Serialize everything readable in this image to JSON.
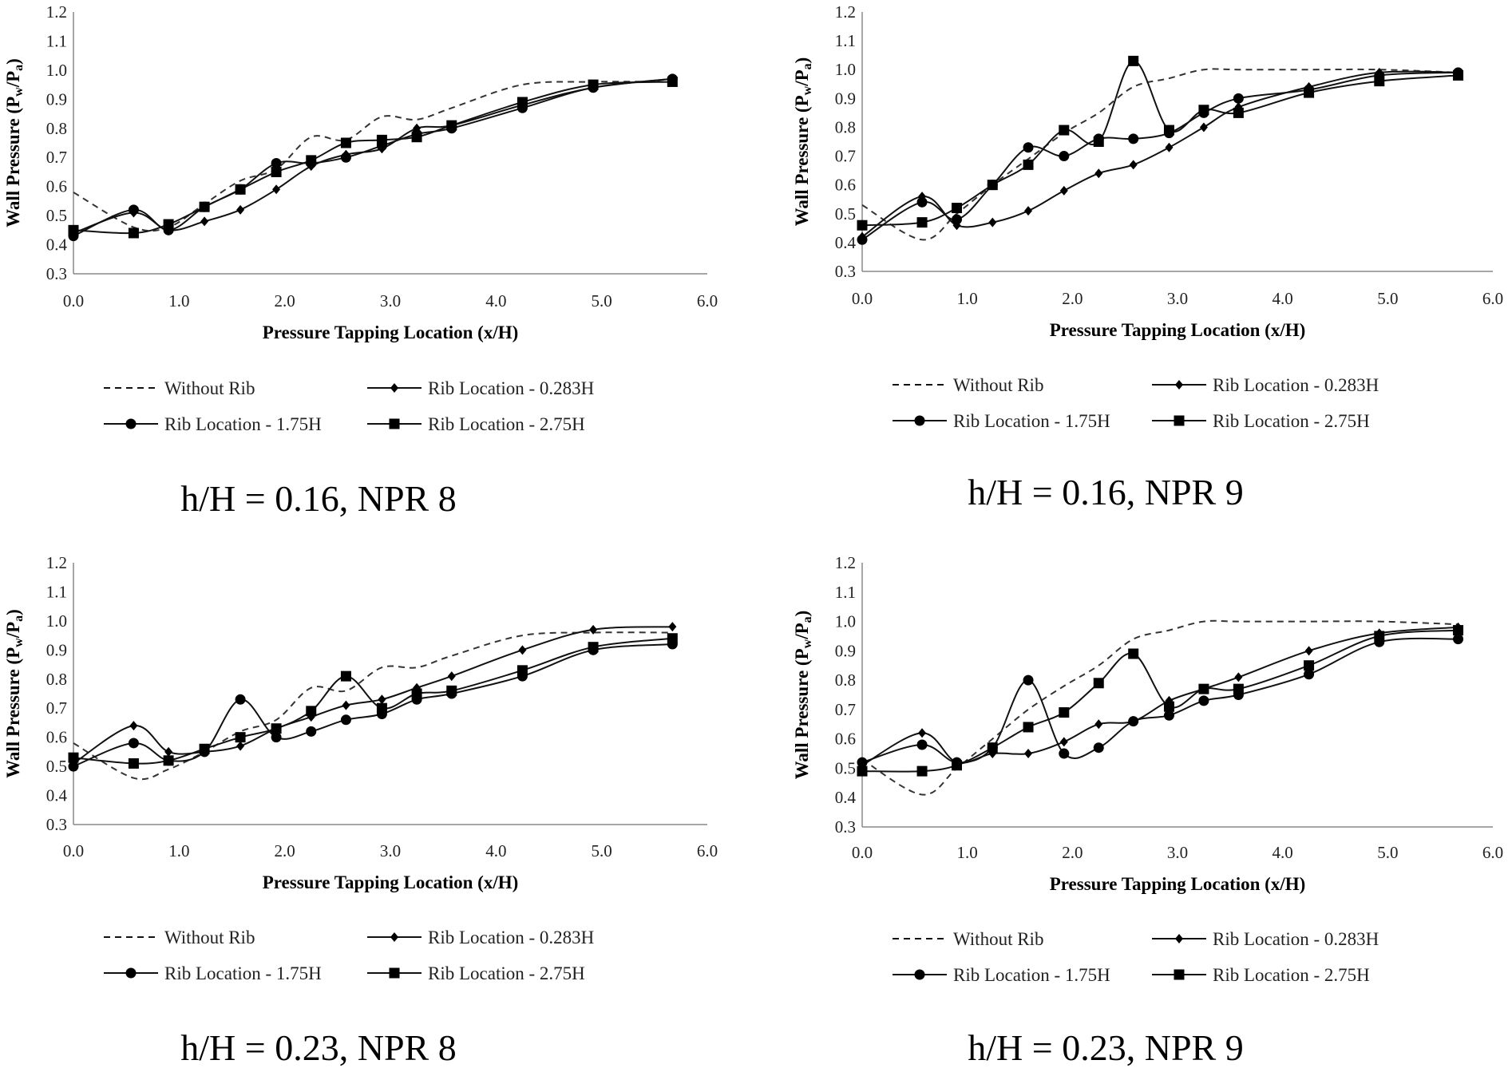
{
  "chart_data": [
    {
      "type": "line",
      "title": "h/H = 0.16, NPR 8",
      "xlabel": "Pressure Tapping Location (x/H)",
      "ylabel": "Wall Pressure (Pw/Pa)",
      "ylabel_parts": {
        "main": "Wall Pressure (P",
        "sub1": "w",
        "mid": "/P",
        "sub2": "a",
        "end": ")"
      },
      "xlim": [
        0,
        6
      ],
      "ylim": [
        0.3,
        1.2
      ],
      "xticks": [
        "0.0",
        "1.0",
        "2.0",
        "3.0",
        "4.0",
        "5.0",
        "6.0"
      ],
      "yticks": [
        "0.3",
        "0.4",
        "0.5",
        "0.6",
        "0.7",
        "0.8",
        "0.9",
        "1.0",
        "1.1",
        "1.2"
      ],
      "grid": false,
      "legend_position": "bottom",
      "series": [
        {
          "name": "Without Rib",
          "marker": "none",
          "dash": true,
          "x": [
            0,
            0.57,
            0.9,
            1.24,
            1.58,
            1.92,
            2.25,
            2.58,
            2.92,
            3.25,
            3.58,
            4.25,
            4.92,
            5.67
          ],
          "y": [
            0.58,
            0.46,
            0.46,
            0.54,
            0.62,
            0.66,
            0.77,
            0.76,
            0.84,
            0.83,
            0.87,
            0.95,
            0.96,
            0.96
          ]
        },
        {
          "name": "Rib Location - 0.283H",
          "marker": "diamond",
          "x": [
            0,
            0.57,
            0.9,
            1.24,
            1.58,
            1.92,
            2.25,
            2.58,
            2.92,
            3.25,
            3.58,
            4.25,
            4.92,
            5.67
          ],
          "y": [
            0.44,
            0.51,
            0.45,
            0.48,
            0.52,
            0.59,
            0.67,
            0.71,
            0.73,
            0.8,
            0.81,
            0.88,
            0.94,
            0.97
          ]
        },
        {
          "name": "Rib Location - 1.75H",
          "marker": "circle",
          "x": [
            0,
            0.57,
            0.9,
            1.24,
            1.58,
            1.92,
            2.25,
            2.58,
            2.92,
            3.25,
            3.58,
            4.25,
            4.92,
            5.67
          ],
          "y": [
            0.43,
            0.52,
            0.45,
            0.53,
            0.59,
            0.68,
            0.68,
            0.7,
            0.74,
            0.78,
            0.8,
            0.87,
            0.94,
            0.97
          ]
        },
        {
          "name": "Rib Location - 2.75H",
          "marker": "square",
          "x": [
            0,
            0.57,
            0.9,
            1.24,
            1.58,
            1.92,
            2.25,
            2.58,
            2.92,
            3.25,
            3.58,
            4.25,
            4.92,
            5.67
          ],
          "y": [
            0.45,
            0.44,
            0.47,
            0.53,
            0.59,
            0.65,
            0.69,
            0.75,
            0.76,
            0.77,
            0.81,
            0.89,
            0.95,
            0.96
          ]
        }
      ]
    },
    {
      "type": "line",
      "title": "h/H = 0.16, NPR 9",
      "xlabel": "Pressure Tapping Location (x/H)",
      "ylabel": "Wall Pressure (Pw/Pa)",
      "ylabel_parts": {
        "main": "Wall Pressure (P",
        "sub1": "w",
        "mid": "/P",
        "sub2": "a",
        "end": ")"
      },
      "xlim": [
        0,
        6
      ],
      "ylim": [
        0.3,
        1.2
      ],
      "xticks": [
        "0.0",
        "1.0",
        "2.0",
        "3.0",
        "4.0",
        "5.0",
        "6.0"
      ],
      "yticks": [
        "0.3",
        "0.4",
        "0.5",
        "0.6",
        "0.7",
        "0.8",
        "0.9",
        "1.0",
        "1.1",
        "1.2"
      ],
      "grid": false,
      "legend_position": "bottom",
      "series": [
        {
          "name": "Without Rib",
          "marker": "none",
          "dash": true,
          "x": [
            0,
            0.57,
            0.9,
            1.24,
            1.58,
            1.92,
            2.25,
            2.58,
            2.92,
            3.25,
            3.58,
            4.25,
            4.92,
            5.67
          ],
          "y": [
            0.53,
            0.41,
            0.5,
            0.6,
            0.69,
            0.78,
            0.85,
            0.94,
            0.97,
            1.0,
            1.0,
            1.0,
            1.0,
            0.99
          ]
        },
        {
          "name": "Rib Location - 0.283H",
          "marker": "diamond",
          "x": [
            0,
            0.57,
            0.9,
            1.24,
            1.58,
            1.92,
            2.25,
            2.58,
            2.92,
            3.25,
            3.58,
            4.25,
            4.92,
            5.67
          ],
          "y": [
            0.42,
            0.56,
            0.46,
            0.47,
            0.51,
            0.58,
            0.64,
            0.67,
            0.73,
            0.8,
            0.87,
            0.94,
            0.99,
            0.99
          ]
        },
        {
          "name": "Rib Location - 1.75H",
          "marker": "circle",
          "x": [
            0,
            0.57,
            0.9,
            1.24,
            1.58,
            1.92,
            2.25,
            2.58,
            2.92,
            3.25,
            3.58,
            4.25,
            4.92,
            5.67
          ],
          "y": [
            0.41,
            0.54,
            0.48,
            0.6,
            0.73,
            0.7,
            0.76,
            0.76,
            0.78,
            0.85,
            0.9,
            0.93,
            0.98,
            0.99
          ]
        },
        {
          "name": "Rib Location - 2.75H",
          "marker": "square",
          "x": [
            0,
            0.57,
            0.9,
            1.24,
            1.58,
            1.92,
            2.25,
            2.58,
            2.92,
            3.25,
            3.58,
            4.25,
            4.92,
            5.67
          ],
          "y": [
            0.46,
            0.47,
            0.52,
            0.6,
            0.67,
            0.79,
            0.75,
            1.03,
            0.79,
            0.86,
            0.85,
            0.92,
            0.96,
            0.98
          ]
        }
      ]
    },
    {
      "type": "line",
      "title": "h/H = 0.23, NPR 8",
      "xlabel": "Pressure Tapping Location (x/H)",
      "ylabel": "Wall Pressure (Pw/Pa)",
      "ylabel_parts": {
        "main": "Wall Pressure (P",
        "sub1": "w",
        "mid": "/P",
        "sub2": "a",
        "end": ")"
      },
      "xlim": [
        0,
        6
      ],
      "ylim": [
        0.3,
        1.2
      ],
      "xticks": [
        "0.0",
        "1.0",
        "2.0",
        "3.0",
        "4.0",
        "5.0",
        "6.0"
      ],
      "yticks": [
        "0.3",
        "0.4",
        "0.5",
        "0.6",
        "0.7",
        "0.8",
        "0.9",
        "1.0",
        "1.1",
        "1.2"
      ],
      "grid": false,
      "legend_position": "bottom",
      "series": [
        {
          "name": "Without Rib",
          "marker": "none",
          "dash": true,
          "x": [
            0,
            0.57,
            0.9,
            1.24,
            1.58,
            1.92,
            2.25,
            2.58,
            2.92,
            3.25,
            3.58,
            4.25,
            4.92,
            5.67
          ],
          "y": [
            0.58,
            0.46,
            0.49,
            0.55,
            0.62,
            0.66,
            0.77,
            0.76,
            0.84,
            0.84,
            0.88,
            0.95,
            0.96,
            0.96
          ]
        },
        {
          "name": "Rib Location - 0.283H",
          "marker": "diamond",
          "x": [
            0,
            0.57,
            0.9,
            1.24,
            1.58,
            1.92,
            2.25,
            2.58,
            2.92,
            3.25,
            3.58,
            4.25,
            4.92,
            5.67
          ],
          "y": [
            0.51,
            0.64,
            0.55,
            0.55,
            0.57,
            0.63,
            0.67,
            0.71,
            0.73,
            0.77,
            0.81,
            0.9,
            0.97,
            0.98
          ]
        },
        {
          "name": "Rib Location - 1.75H",
          "marker": "circle",
          "x": [
            0,
            0.57,
            0.9,
            1.24,
            1.58,
            1.92,
            2.25,
            2.58,
            2.92,
            3.25,
            3.58,
            4.25,
            4.92,
            5.67
          ],
          "y": [
            0.5,
            0.58,
            0.52,
            0.55,
            0.73,
            0.6,
            0.62,
            0.66,
            0.68,
            0.73,
            0.75,
            0.81,
            0.9,
            0.92
          ]
        },
        {
          "name": "Rib Location - 2.75H",
          "marker": "square",
          "x": [
            0,
            0.57,
            0.9,
            1.24,
            1.58,
            1.92,
            2.25,
            2.58,
            2.92,
            3.25,
            3.58,
            4.25,
            4.92,
            5.67
          ],
          "y": [
            0.53,
            0.51,
            0.52,
            0.56,
            0.6,
            0.63,
            0.69,
            0.81,
            0.7,
            0.75,
            0.76,
            0.83,
            0.91,
            0.94
          ]
        }
      ]
    },
    {
      "type": "line",
      "title": "h/H = 0.23, NPR 9",
      "xlabel": "Pressure Tapping Location (x/H)",
      "ylabel": "Wall Pressure (Pw/Pa)",
      "ylabel_parts": {
        "main": "Wall Pressure (P",
        "sub1": "w",
        "mid": "/P",
        "sub2": "a",
        "end": ")"
      },
      "xlim": [
        0,
        6
      ],
      "ylim": [
        0.3,
        1.2
      ],
      "xticks": [
        "0.0",
        "1.0",
        "2.0",
        "3.0",
        "4.0",
        "5.0",
        "6.0"
      ],
      "yticks": [
        "0.3",
        "0.4",
        "0.5",
        "0.6",
        "0.7",
        "0.8",
        "0.9",
        "1.0",
        "1.1",
        "1.2"
      ],
      "grid": false,
      "legend_position": "bottom",
      "series": [
        {
          "name": "Without Rib",
          "marker": "none",
          "dash": true,
          "x": [
            0,
            0.57,
            0.9,
            1.24,
            1.58,
            1.92,
            2.25,
            2.58,
            2.92,
            3.25,
            3.58,
            4.25,
            4.92,
            5.67
          ],
          "y": [
            0.53,
            0.41,
            0.5,
            0.6,
            0.7,
            0.78,
            0.85,
            0.94,
            0.97,
            1.0,
            1.0,
            1.0,
            1.0,
            0.99
          ]
        },
        {
          "name": "Rib Location - 0.283H",
          "marker": "diamond",
          "x": [
            0,
            0.57,
            0.9,
            1.24,
            1.58,
            1.92,
            2.25,
            2.58,
            2.92,
            3.25,
            3.58,
            4.25,
            4.92,
            5.67
          ],
          "y": [
            0.51,
            0.62,
            0.52,
            0.55,
            0.55,
            0.59,
            0.65,
            0.66,
            0.73,
            0.77,
            0.81,
            0.9,
            0.96,
            0.98
          ]
        },
        {
          "name": "Rib Location - 1.75H",
          "marker": "circle",
          "x": [
            0,
            0.57,
            0.9,
            1.24,
            1.58,
            1.92,
            2.25,
            2.58,
            2.92,
            3.25,
            3.58,
            4.25,
            4.92,
            5.67
          ],
          "y": [
            0.52,
            0.58,
            0.52,
            0.57,
            0.8,
            0.55,
            0.57,
            0.66,
            0.68,
            0.73,
            0.75,
            0.82,
            0.93,
            0.94
          ]
        },
        {
          "name": "Rib Location - 2.75H",
          "marker": "square",
          "x": [
            0,
            0.57,
            0.9,
            1.24,
            1.58,
            1.92,
            2.25,
            2.58,
            2.92,
            3.25,
            3.58,
            4.25,
            4.92,
            5.67
          ],
          "y": [
            0.49,
            0.49,
            0.51,
            0.57,
            0.64,
            0.69,
            0.79,
            0.89,
            0.71,
            0.77,
            0.77,
            0.85,
            0.95,
            0.97
          ]
        }
      ]
    }
  ]
}
